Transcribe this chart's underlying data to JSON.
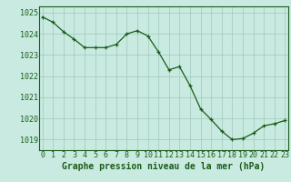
{
  "x": [
    0,
    1,
    2,
    3,
    4,
    5,
    6,
    7,
    8,
    9,
    10,
    11,
    12,
    13,
    14,
    15,
    16,
    17,
    18,
    19,
    20,
    21,
    22,
    23
  ],
  "y": [
    1024.8,
    1024.55,
    1024.1,
    1023.75,
    1023.35,
    1023.35,
    1023.35,
    1023.5,
    1024.0,
    1024.15,
    1023.9,
    1023.15,
    1022.3,
    1022.45,
    1021.55,
    1020.45,
    1019.95,
    1019.4,
    1019.0,
    1019.05,
    1019.3,
    1019.65,
    1019.75,
    1019.9
  ],
  "line_color": "#1a5c1a",
  "marker": "+",
  "marker_size": 3,
  "bg_color": "#c8eae0",
  "grid_color": "#a0c8bc",
  "xlabel": "Graphe pression niveau de la mer (hPa)",
  "ylim": [
    1018.5,
    1025.3
  ],
  "xlim": [
    -0.3,
    23.3
  ],
  "xticks": [
    0,
    1,
    2,
    3,
    4,
    5,
    6,
    7,
    8,
    9,
    10,
    11,
    12,
    13,
    14,
    15,
    16,
    17,
    18,
    19,
    20,
    21,
    22,
    23
  ],
  "yticks": [
    1019,
    1020,
    1021,
    1022,
    1023,
    1024,
    1025
  ],
  "xlabel_fontsize": 7,
  "tick_fontsize": 6
}
